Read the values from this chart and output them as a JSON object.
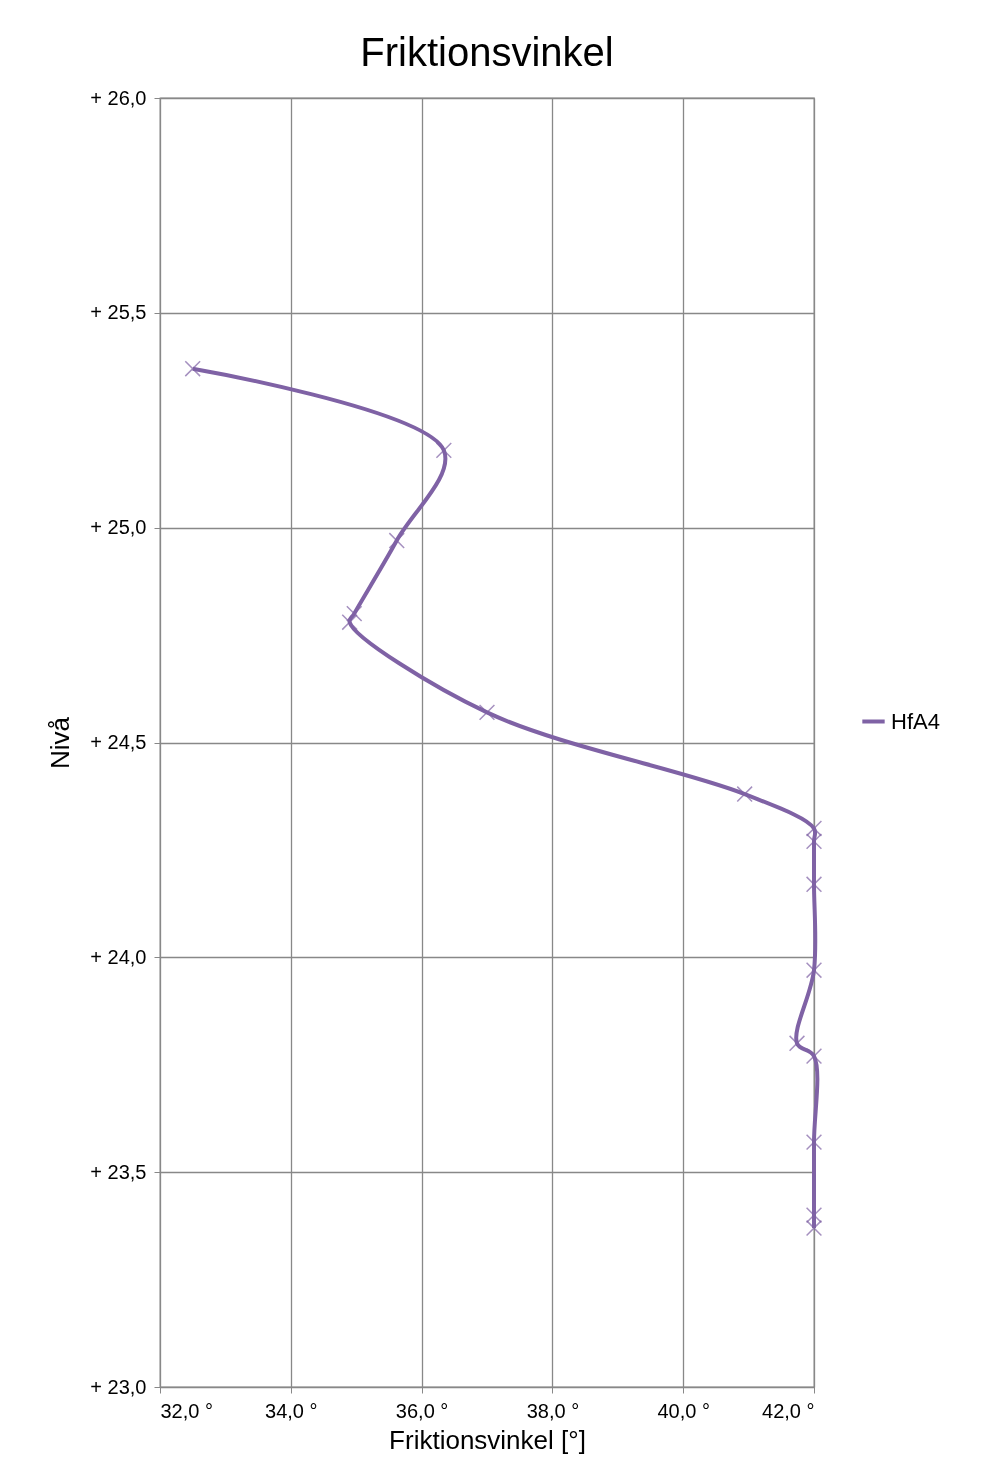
{
  "chart_data": {
    "type": "line",
    "title": "Friktionsvinkel",
    "xlabel": "Friktionsvinkel [°]",
    "ylabel": "Nivå",
    "x": [
      32.5,
      36.34,
      35.62,
      34.97,
      34.9,
      37.0,
      40.94,
      42.0,
      42.0,
      42.0,
      42.0,
      41.74,
      42.0,
      42.0,
      42.0,
      42.0
    ],
    "series": [
      {
        "name": "HfA4",
        "color": "#7f62a5",
        "values": [
          25.37,
          25.18,
          24.97,
          24.8,
          24.78,
          24.57,
          24.38,
          24.3,
          24.27,
          24.17,
          23.97,
          23.8,
          23.77,
          23.57,
          23.4,
          23.37
        ]
      }
    ],
    "xlim": [
      32,
      42
    ],
    "ylim": [
      23,
      26
    ],
    "xticks": [
      {
        "value": 32,
        "label": "32,0 °"
      },
      {
        "value": 34,
        "label": "34,0 °"
      },
      {
        "value": 36,
        "label": "36,0 °"
      },
      {
        "value": 38,
        "label": "38,0 °"
      },
      {
        "value": 40,
        "label": "40,0 °"
      },
      {
        "value": 42,
        "label": "42,0 °"
      }
    ],
    "yticks": [
      {
        "value": 23,
        "label": "+ 23,0"
      },
      {
        "value": 23.5,
        "label": "+ 23,5"
      },
      {
        "value": 24,
        "label": "+ 24,0"
      },
      {
        "value": 24.5,
        "label": "+ 24,5"
      },
      {
        "value": 25,
        "label": "+ 25,0"
      },
      {
        "value": 25.5,
        "label": "+ 25,5"
      },
      {
        "value": 26,
        "label": "+ 26,0"
      }
    ],
    "grid": true,
    "legend": "right",
    "marker": "cross",
    "line_style": "solid"
  }
}
